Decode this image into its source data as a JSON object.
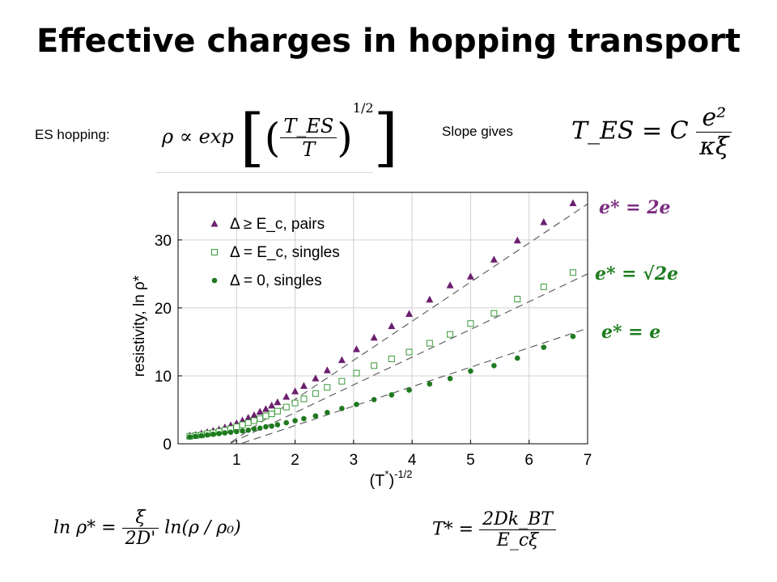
{
  "title": "Effective charges in hopping transport",
  "es_label": "ES hopping:",
  "slope_label": "Slope gives",
  "formula_es": {
    "lhs": "ρ ∝ exp",
    "num": "T_ES",
    "den": "T",
    "exp": "1/2"
  },
  "formula_tes": {
    "lhs": "T_ES = C",
    "num": "e²",
    "den": "κξ"
  },
  "formula_lnrho": {
    "lhs": "ln ρ* =",
    "num": "ξ",
    "den": "2D'",
    "rhs": "ln(ρ / ρ₀)"
  },
  "formula_tstar": {
    "lhs": "T* =",
    "num": "2Dk_BT",
    "den": "E_cξ"
  },
  "annotations": [
    "e* = 2e",
    "e* = √2e",
    "e* = e"
  ],
  "colors": {
    "pairs": "#6b1f6e",
    "singles_open": "#3a9a3a",
    "singles_zero": "#1f7a1f",
    "fit": "#555555",
    "ann_purple": "#7b2d80",
    "ann_green": "#1e7d1e"
  },
  "chart_data": {
    "type": "scatter",
    "xlabel": "(T*)^-1/2",
    "ylabel": "resistivity, ln ρ*",
    "xlim": [
      0,
      7
    ],
    "ylim": [
      0,
      37
    ],
    "xticks": [
      1,
      2,
      3,
      4,
      5,
      6,
      7
    ],
    "yticks": [
      0,
      10,
      20,
      30
    ],
    "grid": true,
    "legend": "top-left",
    "series": [
      {
        "name": "Δ ≥ E_c, pairs",
        "marker": "triangle",
        "x": [
          0.2,
          0.3,
          0.4,
          0.5,
          0.6,
          0.7,
          0.8,
          0.9,
          1.0,
          1.1,
          1.2,
          1.3,
          1.4,
          1.5,
          1.6,
          1.7,
          1.85,
          2.0,
          2.15,
          2.35,
          2.55,
          2.8,
          3.05,
          3.35,
          3.65,
          3.95,
          4.3,
          4.65,
          5.0,
          5.4,
          5.8,
          6.25,
          6.75
        ],
        "y": [
          1.2,
          1.3,
          1.5,
          1.7,
          1.9,
          2.1,
          2.4,
          2.7,
          3.0,
          3.4,
          3.8,
          4.2,
          4.7,
          5.1,
          5.6,
          6.1,
          6.9,
          7.7,
          8.5,
          9.6,
          10.8,
          12.3,
          13.9,
          15.6,
          17.3,
          19.1,
          21.2,
          23.3,
          24.6,
          27.1,
          29.9,
          32.6,
          35.4
        ]
      },
      {
        "name": "Δ = E_c, singles",
        "marker": "square-open",
        "x": [
          0.2,
          0.3,
          0.4,
          0.5,
          0.6,
          0.7,
          0.8,
          0.9,
          1.0,
          1.1,
          1.2,
          1.3,
          1.4,
          1.5,
          1.6,
          1.7,
          1.85,
          2.0,
          2.15,
          2.35,
          2.55,
          2.8,
          3.05,
          3.35,
          3.65,
          3.95,
          4.3,
          4.65,
          5.0,
          5.4,
          5.8,
          6.25,
          6.75
        ],
        "y": [
          1.1,
          1.2,
          1.3,
          1.5,
          1.6,
          1.8,
          2.0,
          2.2,
          2.5,
          2.8,
          3.1,
          3.4,
          3.7,
          4.1,
          4.4,
          4.8,
          5.4,
          6.0,
          6.6,
          7.4,
          8.3,
          9.2,
          10.4,
          11.5,
          12.5,
          13.5,
          14.8,
          16.1,
          17.7,
          19.2,
          21.3,
          23.1,
          25.2
        ]
      },
      {
        "name": "Δ = 0, singles",
        "marker": "circle",
        "x": [
          0.2,
          0.3,
          0.4,
          0.5,
          0.6,
          0.7,
          0.8,
          0.9,
          1.0,
          1.1,
          1.2,
          1.3,
          1.4,
          1.5,
          1.6,
          1.7,
          1.85,
          2.0,
          2.15,
          2.35,
          2.55,
          2.8,
          3.05,
          3.35,
          3.65,
          3.95,
          4.3,
          4.65,
          5.0,
          5.4,
          5.8,
          6.25,
          6.75
        ],
        "y": [
          1.0,
          1.1,
          1.2,
          1.3,
          1.4,
          1.5,
          1.6,
          1.7,
          1.8,
          1.9,
          2.0,
          2.2,
          2.3,
          2.5,
          2.6,
          2.8,
          3.1,
          3.4,
          3.7,
          4.1,
          4.6,
          5.2,
          5.8,
          6.5,
          7.2,
          7.9,
          8.8,
          9.6,
          10.7,
          11.5,
          12.6,
          14.2,
          15.8
        ]
      }
    ],
    "fits": [
      {
        "name": "pairs",
        "x": [
          0.9,
          7.0
        ],
        "y": [
          0.2,
          35.3
        ]
      },
      {
        "name": "singles_open",
        "x": [
          0.9,
          7.0
        ],
        "y": [
          0.1,
          25.0
        ]
      },
      {
        "name": "singles_zero",
        "x": [
          1.1,
          7.0
        ],
        "y": [
          0.1,
          17.0
        ]
      }
    ]
  }
}
